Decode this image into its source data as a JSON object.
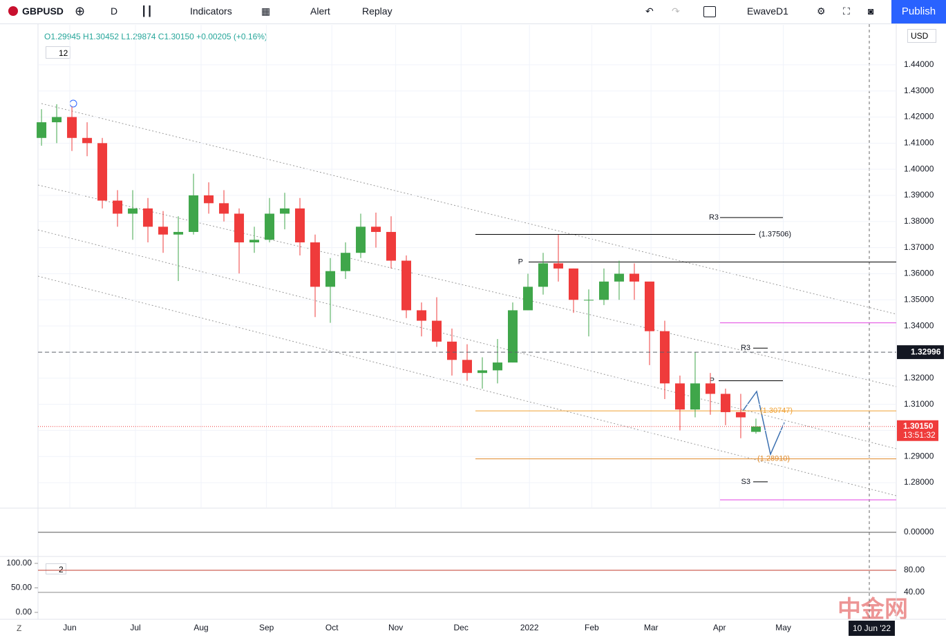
{
  "ui": {
    "symbol": "GBPUSD",
    "interval": "D",
    "indicators": "Indicators",
    "alert": "Alert",
    "replay": "Replay",
    "layout": "EwaveD1",
    "publish": "Publish",
    "currency": "USD",
    "legend": "O1.29945 H1.30452 L1.29874 C1.30150 +0.00205 (+0.16%)",
    "study_count": "12",
    "pane_count": "2",
    "zoom": "Z",
    "cursor_date": "10 Jun '22",
    "watermark": "中金网"
  },
  "chart_data": {
    "type": "candlestick",
    "up_color": "#3fa64a",
    "down_color": "#ef3b3b",
    "open": [
      1.412,
      1.418,
      1.42,
      1.412,
      1.41,
      1.388,
      1.383,
      1.385,
      1.378,
      1.375,
      1.376,
      1.39,
      1.387,
      1.383,
      1.372,
      1.373,
      1.383,
      1.385,
      1.372,
      1.355,
      1.361,
      1.368,
      1.378,
      1.376,
      1.365,
      1.346,
      1.342,
      1.334,
      1.327,
      1.322,
      1.323,
      1.326,
      1.346,
      1.355,
      1.364,
      1.362,
      1.35,
      1.35,
      1.357,
      1.36,
      1.357,
      1.338,
      1.318,
      1.308,
      1.318,
      1.314,
      1.307,
      1.29945
    ],
    "high": [
      1.423,
      1.4249,
      1.424,
      1.418,
      1.412,
      1.392,
      1.392,
      1.389,
      1.384,
      1.382,
      1.3983,
      1.395,
      1.392,
      1.385,
      1.378,
      1.389,
      1.391,
      1.389,
      1.375,
      1.366,
      1.372,
      1.383,
      1.3834,
      1.382,
      1.367,
      1.349,
      1.351,
      1.339,
      1.333,
      1.328,
      1.335,
      1.349,
      1.36,
      1.368,
      1.3749,
      1.362,
      1.354,
      1.362,
      1.365,
      1.364,
      1.356,
      1.342,
      1.321,
      1.3299,
      1.322,
      1.316,
      1.314,
      1.30452
    ],
    "low": [
      1.409,
      1.41,
      1.407,
      1.405,
      1.385,
      1.378,
      1.373,
      1.372,
      1.368,
      1.3572,
      1.375,
      1.383,
      1.38,
      1.3601,
      1.368,
      1.372,
      1.377,
      1.367,
      1.3434,
      1.3412,
      1.358,
      1.366,
      1.37,
      1.362,
      1.343,
      1.336,
      1.332,
      1.321,
      1.319,
      1.316,
      1.318,
      1.326,
      1.346,
      1.352,
      1.357,
      1.345,
      1.336,
      1.348,
      1.35,
      1.35,
      1.325,
      1.312,
      1.3,
      1.305,
      1.306,
      1.302,
      1.297,
      1.29874
    ],
    "close": [
      1.418,
      1.42,
      1.412,
      1.41,
      1.388,
      1.383,
      1.385,
      1.378,
      1.375,
      1.376,
      1.39,
      1.387,
      1.383,
      1.372,
      1.373,
      1.383,
      1.385,
      1.372,
      1.355,
      1.361,
      1.368,
      1.378,
      1.376,
      1.365,
      1.346,
      1.342,
      1.334,
      1.327,
      1.322,
      1.323,
      1.326,
      1.346,
      1.355,
      1.364,
      1.362,
      1.35,
      1.35,
      1.357,
      1.36,
      1.357,
      1.338,
      1.318,
      1.308,
      1.318,
      1.314,
      1.307,
      1.305,
      1.3015
    ],
    "xlim": [
      -0.23,
      56.23
    ],
    "xticks": [
      {
        "value": 1.86,
        "label": "Jun"
      },
      {
        "value": 6.18,
        "label": "Jul"
      },
      {
        "value": 10.5,
        "label": "Aug"
      },
      {
        "value": 14.8,
        "label": "Sep"
      },
      {
        "value": 19.1,
        "label": "Oct"
      },
      {
        "value": 23.3,
        "label": "Nov"
      },
      {
        "value": 27.6,
        "label": "Dec"
      },
      {
        "value": 32.1,
        "label": "2022"
      },
      {
        "value": 36.2,
        "label": "Feb"
      },
      {
        "value": 40.1,
        "label": "Mar"
      },
      {
        "value": 44.6,
        "label": "Apr"
      },
      {
        "value": 48.8,
        "label": "May"
      }
    ],
    "ylim": [
      1.2705,
      1.4553
    ],
    "yticks": [
      {
        "value": 1.28,
        "label": "1.28000"
      },
      {
        "value": 1.29,
        "label": "1.29000"
      },
      {
        "value": 1.3,
        "label": "1.30000"
      },
      {
        "value": 1.31,
        "label": "1.31000"
      },
      {
        "value": 1.32,
        "label": "1.32000"
      },
      {
        "value": 1.33,
        "label": "1.33000"
      },
      {
        "value": 1.34,
        "label": "1.34000"
      },
      {
        "value": 1.35,
        "label": "1.35000"
      },
      {
        "value": 1.36,
        "label": "1.36000"
      },
      {
        "value": 1.37,
        "label": "1.37000"
      },
      {
        "value": 1.38,
        "label": "1.38000"
      },
      {
        "value": 1.39,
        "label": "1.39000"
      },
      {
        "value": 1.4,
        "label": "1.40000"
      },
      {
        "value": 1.41,
        "label": "1.41000"
      },
      {
        "value": 1.42,
        "label": "1.42000"
      },
      {
        "value": 1.43,
        "label": "1.43000"
      },
      {
        "value": 1.44,
        "label": "1.44000"
      }
    ],
    "grid": true,
    "levels": [
      {
        "value": 1.37506,
        "label": "(1.37506)",
        "color": "#000000"
      },
      {
        "value": 1.30747,
        "label": "(1.30747)",
        "color": "#f0a030"
      },
      {
        "value": 1.2891,
        "label": "(1.28910)",
        "color": "#e08a2a"
      },
      {
        "value": 1.3815,
        "label": "R3",
        "color": "#000000"
      },
      {
        "value": 1.3645,
        "label": "P",
        "color": "#000000"
      },
      {
        "value": 1.3315,
        "label": "R3",
        "color": "#000000"
      },
      {
        "value": 1.319,
        "label": "P",
        "color": "#000000"
      },
      {
        "value": 1.2803,
        "label": "S3",
        "color": "#000000"
      },
      {
        "value": 1.3412,
        "color": "#e040e0"
      },
      {
        "value": 1.2734,
        "color": "#e040e0"
      }
    ],
    "crosshair": {
      "value": 1.32996,
      "label": "1.32996"
    },
    "last_price": {
      "value": 1.3015,
      "label": "1.30150",
      "countdown": "13:51:32"
    },
    "oscillator": {
      "ylim": [
        -1,
        1
      ],
      "yticks": [
        {
          "value": 0,
          "label": "0.00000"
        }
      ]
    },
    "stochastic": {
      "ylim": [
        -14.1,
        112.7
      ],
      "yticks": [
        {
          "value": 100,
          "label": "100.00"
        },
        {
          "value": 50,
          "label": "50.00"
        },
        {
          "value": 0,
          "label": "0.00"
        }
      ],
      "y2lim": [
        -8.75,
        103.75
      ],
      "y2ticks": [
        {
          "value": 80,
          "label": "80.00"
        },
        {
          "value": 40,
          "label": "40.00"
        }
      ]
    }
  }
}
